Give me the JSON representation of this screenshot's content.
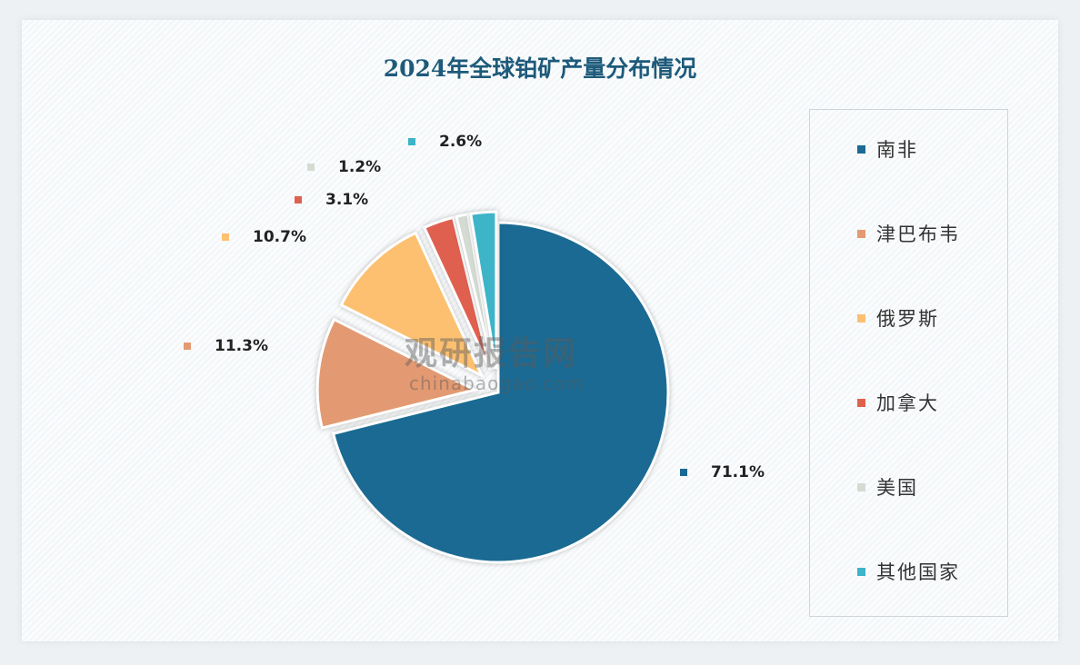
{
  "chart_data": {
    "type": "pie",
    "title": "2024年全球铂矿产量分布情况",
    "categories": [
      "南非",
      "津巴布韦",
      "俄罗斯",
      "加拿大",
      "美国",
      "其他国家"
    ],
    "values": [
      71.1,
      11.3,
      10.7,
      3.1,
      1.2,
      2.6
    ],
    "data_labels": [
      "71.1%",
      "11.3%",
      "10.7%",
      "3.1%",
      "1.2%",
      "2.6%"
    ],
    "colors": [
      "#1a6a93",
      "#e39a72",
      "#fcc070",
      "#e0604f",
      "#d3dbd3",
      "#3db4c8"
    ],
    "legend_position": "right",
    "exploded": [
      false,
      true,
      true,
      true,
      true,
      true
    ]
  },
  "watermark": {
    "cn": "观研报告网",
    "en": "chinabaogao.com"
  }
}
